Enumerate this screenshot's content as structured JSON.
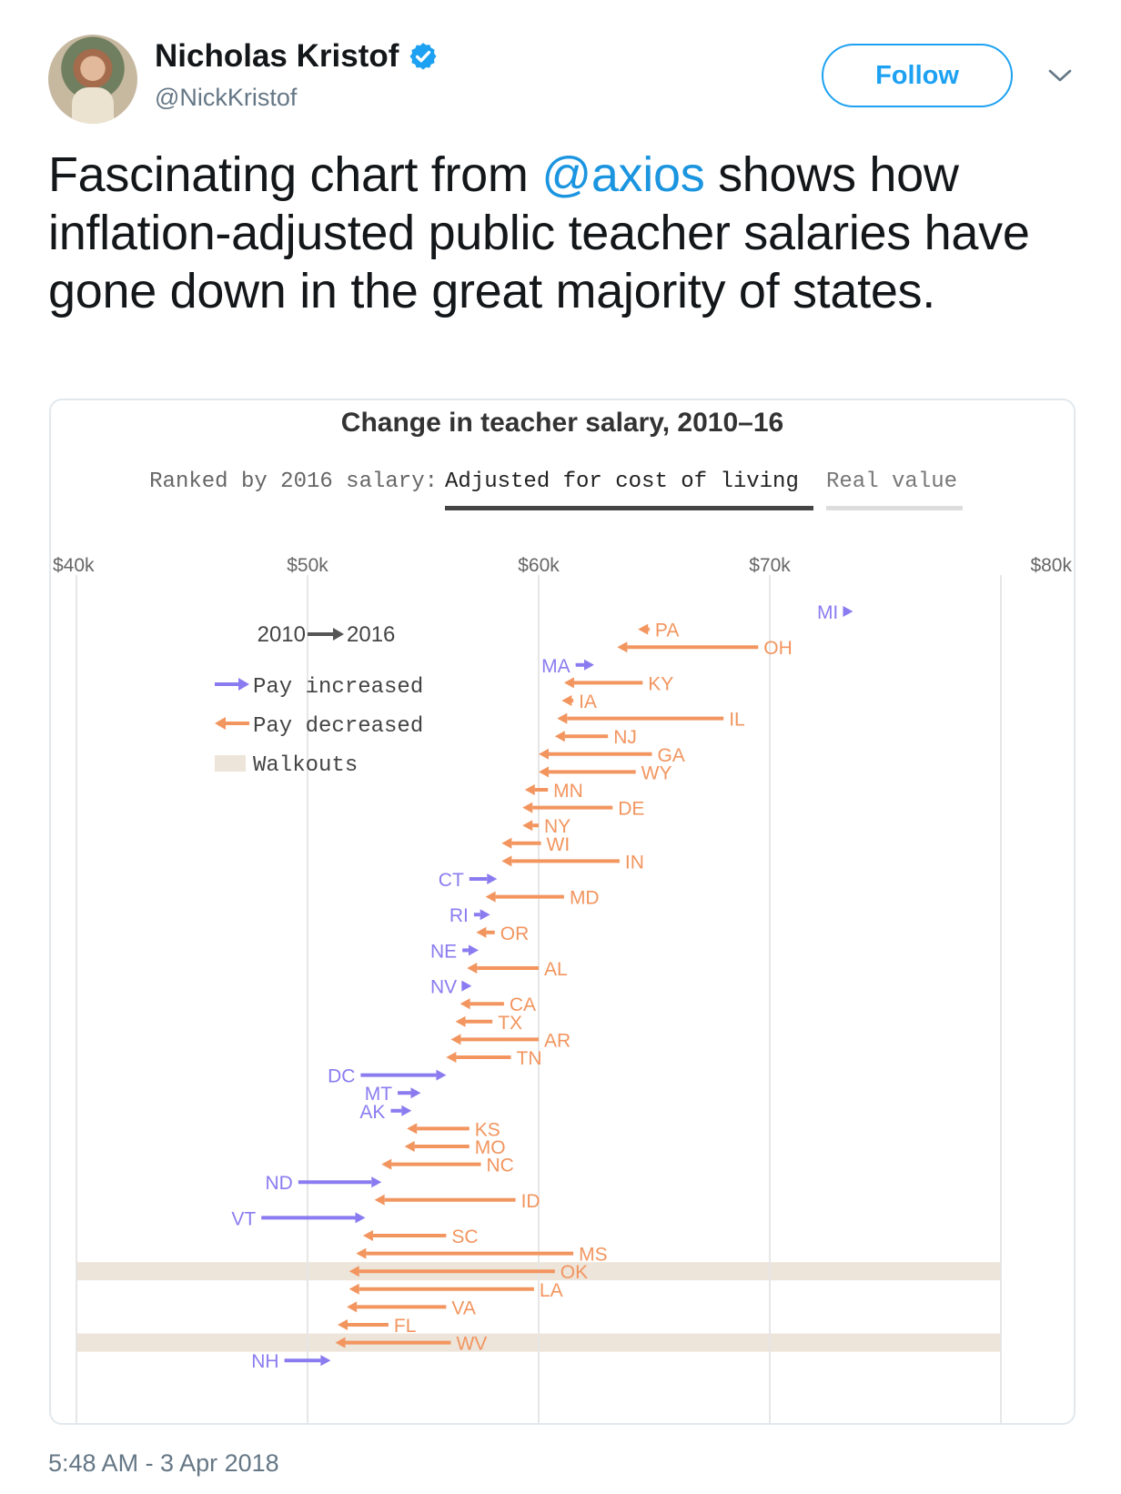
{
  "author": {
    "name": "Nicholas Kristof",
    "handle": "@NickKristof",
    "verified": true
  },
  "follow_label": "Follow",
  "tweet": {
    "text_before": "Fascinating chart from ",
    "mention": "@axios",
    "text_after": " shows how inflation-adjusted public teacher salaries have gone down in the great majority of states."
  },
  "timestamp": "5:48 AM - 3 Apr 2018",
  "colors": {
    "increase": "#8a7cf0",
    "decrease": "#f2955f",
    "walkout": "#ede4da",
    "mention": "#1b95e0",
    "follow": "#1da1f2"
  },
  "chart_data": {
    "type": "arrow",
    "title": "Change in teacher salary, 2010–16",
    "toggle": {
      "label": "Ranked by 2016 salary:",
      "options": [
        "Adjusted for cost of living",
        "Real value"
      ],
      "selected": "Adjusted for cost of living"
    },
    "x_ticks": [
      "$40k",
      "$50k",
      "$60k",
      "$70k",
      "$80k"
    ],
    "xlim": [
      40000,
      80000
    ],
    "legend": {
      "from_to_start": "2010",
      "from_to_end": "2016",
      "items": [
        {
          "label": "Pay increased",
          "kind": "increase"
        },
        {
          "label": "Pay decreased",
          "kind": "decrease"
        },
        {
          "label": "Walkouts",
          "kind": "walkout"
        }
      ]
    },
    "states": [
      {
        "state": "MI",
        "salary_2010": 73200,
        "salary_2016": 73600,
        "walkout": false
      },
      {
        "state": "PA",
        "salary_2010": 64800,
        "salary_2016": 64300,
        "walkout": false
      },
      {
        "state": "OH",
        "salary_2010": 69500,
        "salary_2016": 63400,
        "walkout": false
      },
      {
        "state": "MA",
        "salary_2010": 61600,
        "salary_2016": 62400,
        "walkout": false
      },
      {
        "state": "KY",
        "salary_2010": 64500,
        "salary_2016": 61100,
        "walkout": false
      },
      {
        "state": "IA",
        "salary_2010": 61500,
        "salary_2016": 61000,
        "walkout": false
      },
      {
        "state": "IL",
        "salary_2010": 68000,
        "salary_2016": 60800,
        "walkout": false
      },
      {
        "state": "NJ",
        "salary_2010": 63000,
        "salary_2016": 60700,
        "walkout": false
      },
      {
        "state": "GA",
        "salary_2010": 64900,
        "salary_2016": 60000,
        "walkout": false
      },
      {
        "state": "WY",
        "salary_2010": 64200,
        "salary_2016": 60000,
        "walkout": false
      },
      {
        "state": "MN",
        "salary_2010": 60400,
        "salary_2016": 59400,
        "walkout": false
      },
      {
        "state": "DE",
        "salary_2010": 63200,
        "salary_2016": 59300,
        "walkout": false
      },
      {
        "state": "NY",
        "salary_2010": 60000,
        "salary_2016": 59300,
        "walkout": false
      },
      {
        "state": "WI",
        "salary_2010": 60100,
        "salary_2016": 58400,
        "walkout": false
      },
      {
        "state": "IN",
        "salary_2010": 63500,
        "salary_2016": 58400,
        "walkout": false
      },
      {
        "state": "CT",
        "salary_2010": 57000,
        "salary_2016": 58200,
        "walkout": false
      },
      {
        "state": "MD",
        "salary_2010": 61100,
        "salary_2016": 57700,
        "walkout": false
      },
      {
        "state": "RI",
        "salary_2010": 57200,
        "salary_2016": 57900,
        "walkout": false
      },
      {
        "state": "OR",
        "salary_2010": 58100,
        "salary_2016": 57300,
        "walkout": false
      },
      {
        "state": "NE",
        "salary_2010": 56700,
        "salary_2016": 57400,
        "walkout": false
      },
      {
        "state": "AL",
        "salary_2010": 60000,
        "salary_2016": 56900,
        "walkout": false
      },
      {
        "state": "NV",
        "salary_2010": 56700,
        "salary_2016": 57100,
        "walkout": false
      },
      {
        "state": "CA",
        "salary_2010": 58500,
        "salary_2016": 56600,
        "walkout": false
      },
      {
        "state": "TX",
        "salary_2010": 58000,
        "salary_2016": 56400,
        "walkout": false
      },
      {
        "state": "AR",
        "salary_2010": 60000,
        "salary_2016": 56200,
        "walkout": false
      },
      {
        "state": "TN",
        "salary_2010": 58800,
        "salary_2016": 56000,
        "walkout": false
      },
      {
        "state": "DC",
        "salary_2010": 52300,
        "salary_2016": 56000,
        "walkout": false
      },
      {
        "state": "MT",
        "salary_2010": 53900,
        "salary_2016": 54900,
        "walkout": false
      },
      {
        "state": "AK",
        "salary_2010": 53600,
        "salary_2016": 54500,
        "walkout": false
      },
      {
        "state": "KS",
        "salary_2010": 57000,
        "salary_2016": 54300,
        "walkout": false
      },
      {
        "state": "MO",
        "salary_2010": 57000,
        "salary_2016": 54200,
        "walkout": false
      },
      {
        "state": "NC",
        "salary_2010": 57500,
        "salary_2016": 53200,
        "walkout": false
      },
      {
        "state": "ND",
        "salary_2010": 49600,
        "salary_2016": 53200,
        "walkout": false
      },
      {
        "state": "ID",
        "salary_2010": 59000,
        "salary_2016": 52900,
        "walkout": false
      },
      {
        "state": "VT",
        "salary_2010": 48000,
        "salary_2016": 52500,
        "walkout": false
      },
      {
        "state": "SC",
        "salary_2010": 56000,
        "salary_2016": 52400,
        "walkout": false
      },
      {
        "state": "MS",
        "salary_2010": 61500,
        "salary_2016": 52100,
        "walkout": false
      },
      {
        "state": "OK",
        "salary_2010": 60700,
        "salary_2016": 51800,
        "walkout": true
      },
      {
        "state": "LA",
        "salary_2010": 59800,
        "salary_2016": 51800,
        "walkout": false
      },
      {
        "state": "VA",
        "salary_2010": 56000,
        "salary_2016": 51700,
        "walkout": false
      },
      {
        "state": "FL",
        "salary_2010": 53500,
        "salary_2016": 51300,
        "walkout": false
      },
      {
        "state": "WV",
        "salary_2010": 56200,
        "salary_2016": 51200,
        "walkout": true
      },
      {
        "state": "NH",
        "salary_2010": 49000,
        "salary_2016": 51000,
        "walkout": false
      }
    ]
  }
}
